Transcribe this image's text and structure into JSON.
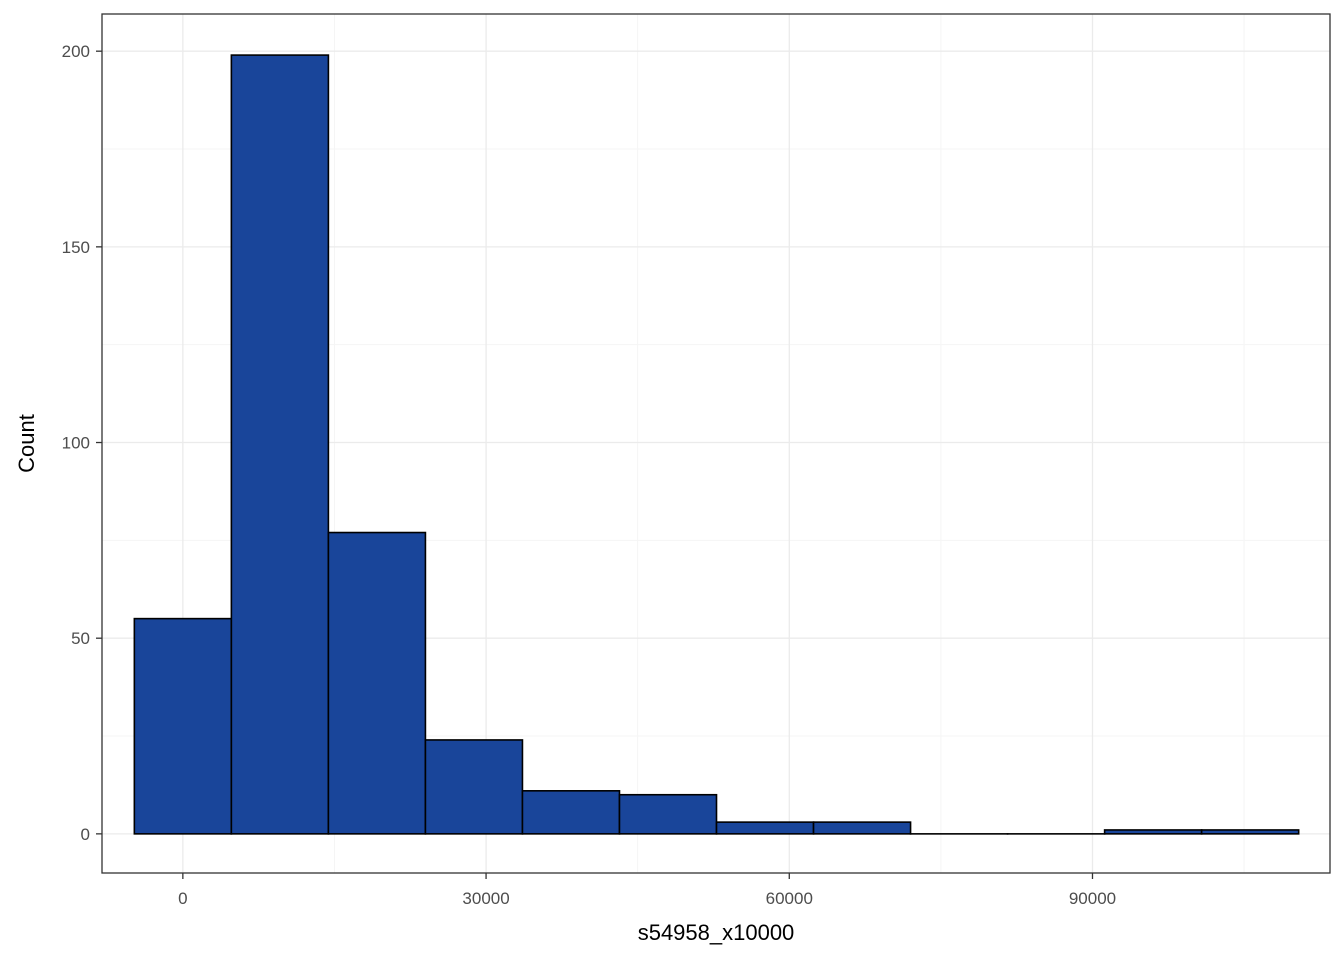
{
  "chart_data": {
    "type": "bar",
    "subtype": "histogram",
    "xlabel": "s54958_x10000",
    "ylabel": "Count",
    "xlim": [
      -8000,
      113500
    ],
    "ylim": [
      -10,
      209.5
    ],
    "x_ticks": [
      0,
      30000,
      60000,
      90000
    ],
    "x_tick_labels": [
      "0",
      "30000",
      "60000",
      "90000"
    ],
    "y_ticks": [
      0,
      50,
      100,
      150,
      200
    ],
    "y_tick_labels": [
      "0",
      "50",
      "100",
      "150",
      "200"
    ],
    "bins": [
      {
        "x0": -4800,
        "x1": 4800,
        "count": 55
      },
      {
        "x0": 4800,
        "x1": 14400,
        "count": 199
      },
      {
        "x0": 14400,
        "x1": 24000,
        "count": 77
      },
      {
        "x0": 24000,
        "x1": 33600,
        "count": 24
      },
      {
        "x0": 33600,
        "x1": 43200,
        "count": 11
      },
      {
        "x0": 43200,
        "x1": 52800,
        "count": 10
      },
      {
        "x0": 52800,
        "x1": 62400,
        "count": 3
      },
      {
        "x0": 62400,
        "x1": 72000,
        "count": 3
      },
      {
        "x0": 72000,
        "x1": 81600,
        "count": 0
      },
      {
        "x0": 81600,
        "x1": 91200,
        "count": 0
      },
      {
        "x0": 91200,
        "x1": 100800,
        "count": 1
      },
      {
        "x0": 100800,
        "x1": 110400,
        "count": 1
      }
    ],
    "grid": true,
    "legend": "none",
    "colors": {
      "bar_fill": "#19459A",
      "bar_stroke": "#000000",
      "grid_major": "#EBEBEB",
      "grid_minor": "#F5F5F5",
      "panel_border": "#333333",
      "tick_text": "#4D4D4D"
    }
  }
}
